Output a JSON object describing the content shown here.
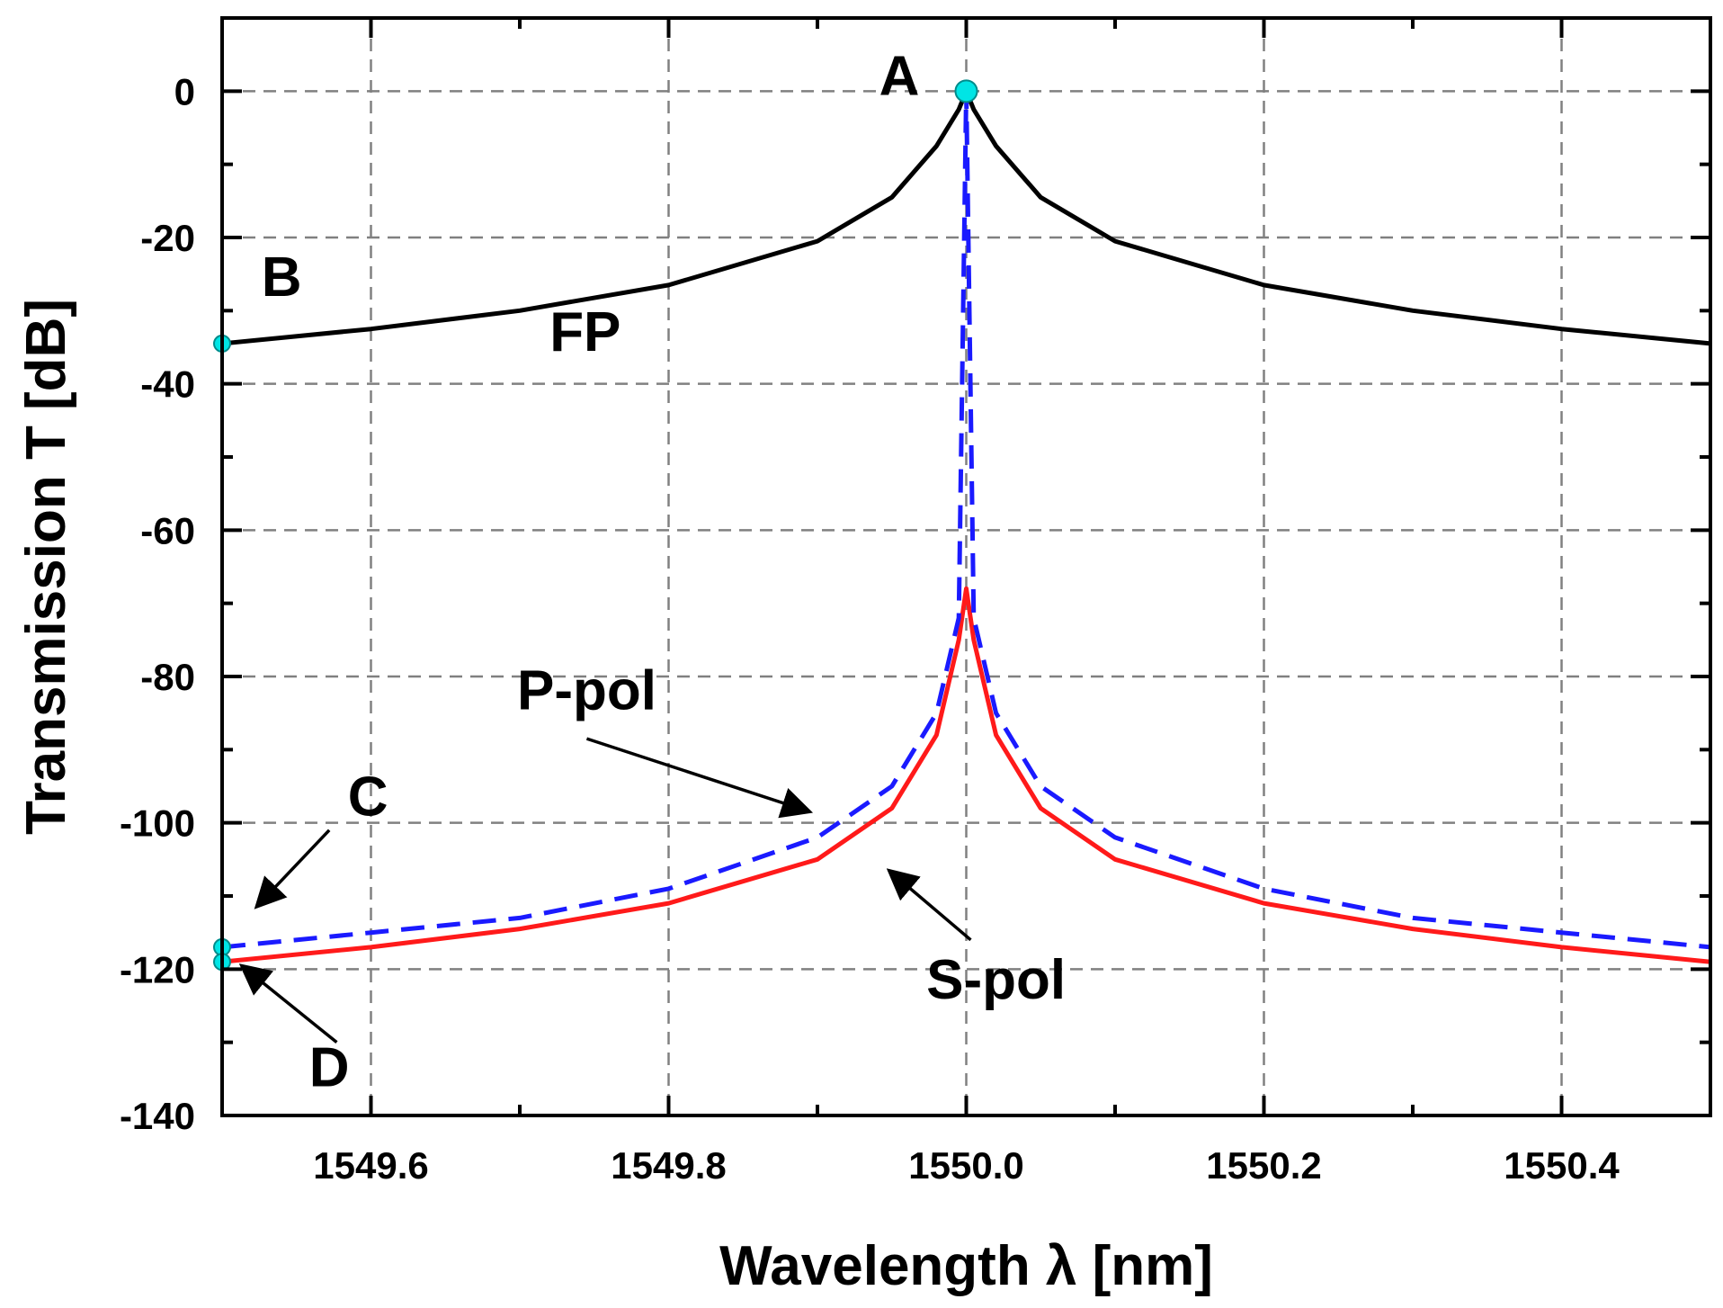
{
  "chart_data": {
    "type": "line",
    "title": "",
    "xlabel": "Wavelength λ [nm]",
    "ylabel": "Transmission T [dB]",
    "xlim": [
      1549.5,
      1550.5
    ],
    "ylim": [
      -140,
      10
    ],
    "x_ticks": [
      1549.6,
      1549.8,
      1550.0,
      1550.2,
      1550.4
    ],
    "x_tick_labels": [
      "1549.6",
      "1549.8",
      "1550.0",
      "1550.2",
      "1550.4"
    ],
    "x_minor_ticks": [
      1549.5,
      1549.7,
      1549.9,
      1550.1,
      1550.3,
      1550.5
    ],
    "y_ticks": [
      0,
      -20,
      -40,
      -60,
      -80,
      -100,
      -120,
      -140
    ],
    "y_tick_labels": [
      "0",
      "-20",
      "-40",
      "-60",
      "-80",
      "-100",
      "-120",
      "-140"
    ],
    "y_minor_ticks": [
      -10,
      -30,
      -50,
      -70,
      -90,
      -110,
      -130
    ],
    "grid": true,
    "series": [
      {
        "name": "FP",
        "color": "#000000",
        "style": "solid",
        "x": [
          1549.5,
          1549.6,
          1549.7,
          1549.8,
          1549.9,
          1549.95,
          1549.98,
          1549.995,
          1550.0,
          1550.005,
          1550.02,
          1550.05,
          1550.1,
          1550.2,
          1550.3,
          1550.4,
          1550.5
        ],
        "values": [
          -34.5,
          -32.5,
          -30,
          -26.5,
          -20.5,
          -14.5,
          -7.5,
          -2.5,
          0,
          -2.5,
          -7.5,
          -14.5,
          -20.5,
          -26.5,
          -30,
          -32.5,
          -34.5
        ]
      },
      {
        "name": "P-pol",
        "color": "#1a1aff",
        "style": "dashed",
        "x": [
          1549.5,
          1549.6,
          1549.7,
          1549.8,
          1549.9,
          1549.95,
          1549.98,
          1549.995,
          1550.0,
          1550.005,
          1550.02,
          1550.05,
          1550.1,
          1550.2,
          1550.3,
          1550.4,
          1550.5
        ],
        "values": [
          -117,
          -115,
          -113,
          -109,
          -102,
          -95,
          -85,
          -72,
          0,
          -72,
          -85,
          -95,
          -102,
          -109,
          -113,
          -115,
          -117
        ]
      },
      {
        "name": "S-pol",
        "color": "#ff1a1a",
        "style": "solid",
        "x": [
          1549.5,
          1549.6,
          1549.7,
          1549.8,
          1549.9,
          1549.95,
          1549.98,
          1549.995,
          1550.0,
          1550.005,
          1550.02,
          1550.05,
          1550.1,
          1550.2,
          1550.3,
          1550.4,
          1550.5
        ],
        "values": [
          -119,
          -117,
          -114.5,
          -111,
          -105,
          -98,
          -88,
          -75,
          -68,
          -75,
          -88,
          -98,
          -105,
          -111,
          -114.5,
          -117,
          -119
        ]
      }
    ],
    "markers": [
      {
        "label": "A",
        "x": 1550.0,
        "y": 0,
        "color": "#00e5e5"
      },
      {
        "label": "B",
        "x": 1549.5,
        "y": -34.5,
        "color": "#00e5e5"
      },
      {
        "label": "C",
        "x": 1549.5,
        "y": -117,
        "color": "#00e5e5"
      },
      {
        "label": "D",
        "x": 1549.5,
        "y": -119,
        "color": "#00e5e5"
      }
    ],
    "annotations": [
      {
        "text": "A",
        "x": 1549.955,
        "y": -0.5
      },
      {
        "text": "B",
        "x": 1549.54,
        "y": -28
      },
      {
        "text": "FP",
        "x": 1549.744,
        "y": -35.5
      },
      {
        "text": "P-pol",
        "x": 1549.745,
        "y": -84.5
      },
      {
        "text": "C",
        "x": 1549.598,
        "y": -99
      },
      {
        "text": "S-pol",
        "x": 1550.02,
        "y": -124
      },
      {
        "text": "D",
        "x": 1549.572,
        "y": -136
      }
    ],
    "arrows": [
      {
        "from": [
          1549.745,
          -88.5
        ],
        "to": [
          1549.895,
          -98.5
        ]
      },
      {
        "from": [
          1549.572,
          -101
        ],
        "to": [
          1549.523,
          -111.5
        ]
      },
      {
        "from": [
          1550.003,
          -116
        ],
        "to": [
          1549.948,
          -106.5
        ]
      },
      {
        "from": [
          1549.577,
          -130
        ],
        "to": [
          1549.513,
          -119.5
        ]
      }
    ]
  }
}
